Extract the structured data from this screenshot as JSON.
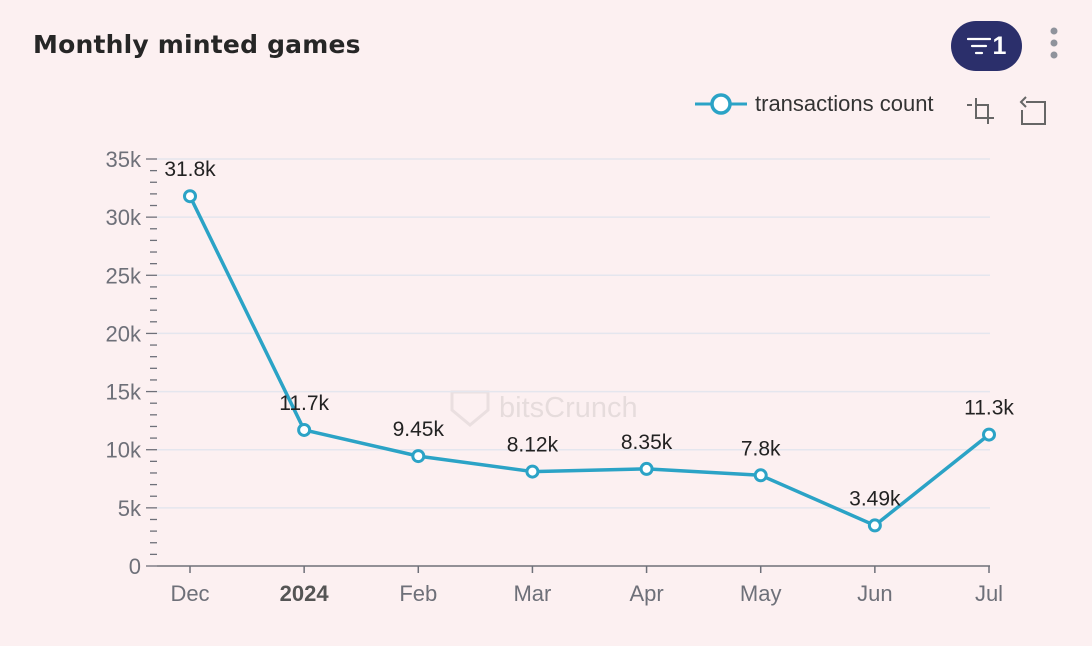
{
  "header": {
    "title": "Monthly minted games",
    "filter_count": "1"
  },
  "legend": {
    "label": "transactions count"
  },
  "watermark": "bitsCrunch",
  "colors": {
    "series": "#2ba3c6",
    "background": "#fcf0f1",
    "filter_button": "#2b2f6b",
    "grid": "#e4e6ee"
  },
  "chart_data": {
    "type": "line",
    "title": "Monthly minted games",
    "xlabel": "",
    "ylabel": "",
    "categories": [
      "Dec",
      "2024",
      "Feb",
      "Mar",
      "Apr",
      "May",
      "Jun",
      "Jul"
    ],
    "bold_categories": [
      "2024"
    ],
    "series": [
      {
        "name": "transactions count",
        "values": [
          31800,
          11700,
          9450,
          8120,
          8350,
          7800,
          3490,
          11300
        ],
        "labels": [
          "31.8k",
          "11.7k",
          "9.45k",
          "8.12k",
          "8.35k",
          "7.8k",
          "3.49k",
          "11.3k"
        ]
      }
    ],
    "ylim": [
      0,
      35000
    ],
    "yticks": [
      0,
      5000,
      10000,
      15000,
      20000,
      25000,
      30000,
      35000
    ],
    "ytick_labels": [
      "0",
      "5k",
      "10k",
      "15k",
      "20k",
      "25k",
      "30k",
      "35k"
    ],
    "grid": true,
    "legend_position": "top-right"
  }
}
